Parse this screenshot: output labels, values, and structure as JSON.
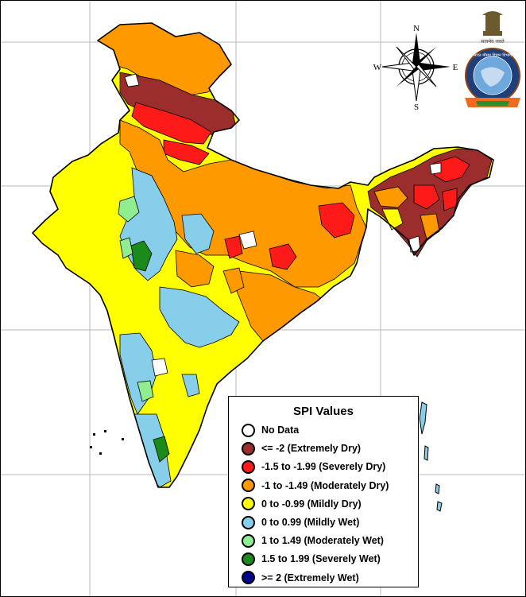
{
  "legend": {
    "title": "SPI Values",
    "items": [
      {
        "label": "No Data",
        "color": "#ffffff"
      },
      {
        "label": "<= -2 (Extremely Dry)",
        "color": "#9b2d2d"
      },
      {
        "label": "-1.5 to -1.99 (Severely Dry)",
        "color": "#ff1a1a"
      },
      {
        "label": "-1 to -1.49 (Moderately Dry)",
        "color": "#ff9900"
      },
      {
        "label": "0 to -0.99 (Mildly  Dry)",
        "color": "#ffff00"
      },
      {
        "label": "0 to 0.99 (Mildly  Wet)",
        "color": "#87ceeb"
      },
      {
        "label": "1 to 1.49 (Moderately Wet)",
        "color": "#90ee90"
      },
      {
        "label": "1.5 to 1.99 (Severely Wet)",
        "color": "#1a8a1a"
      },
      {
        "label": ">= 2 (Extremely Wet)",
        "color": "#00008b"
      }
    ]
  },
  "compass": {
    "n": "N",
    "s": "S",
    "e": "E",
    "w": "W"
  },
  "emblem": {
    "name": "imd-emblem-icon",
    "caption": "भारत मौसम विज्ञान विभाग",
    "ribbon": "INDIA METEOROLOGICAL DEPARTMENT"
  },
  "colors": {
    "extremely_dry": "#9b2d2d",
    "severely_dry": "#ff1a1a",
    "moderately_dry": "#ff9900",
    "mildly_dry": "#ffff00",
    "mildly_wet": "#87ceeb",
    "moderately_wet": "#90ee90",
    "severely_wet": "#1a8a1a",
    "extremely_wet": "#00008b",
    "no_data": "#ffffff"
  }
}
